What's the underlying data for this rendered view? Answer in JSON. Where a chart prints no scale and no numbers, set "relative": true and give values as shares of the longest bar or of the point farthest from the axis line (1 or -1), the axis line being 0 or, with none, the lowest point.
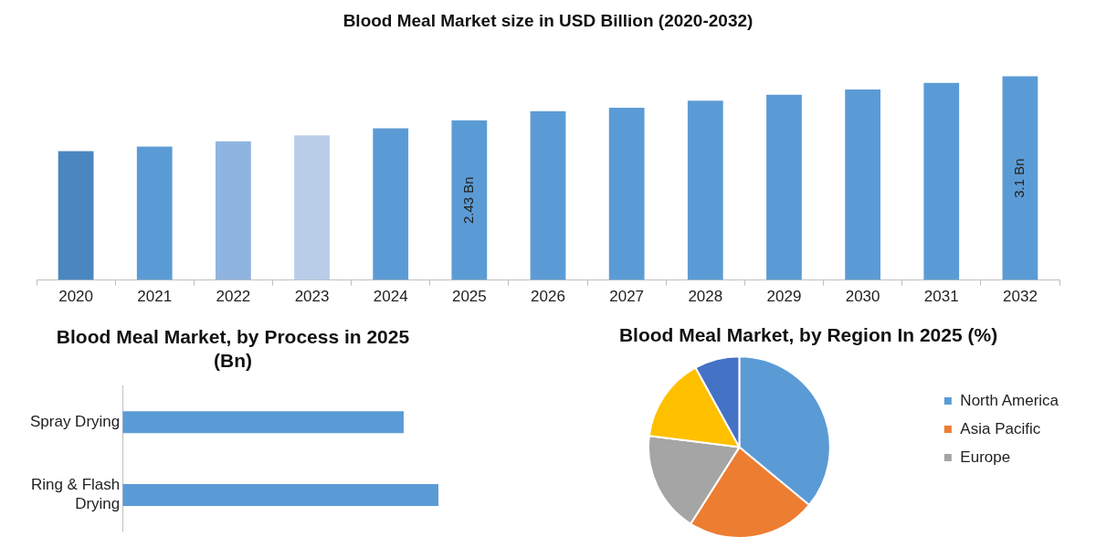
{
  "chart_data": [
    {
      "type": "bar",
      "title": "Blood Meal Market size in USD Billion (2020-2032)",
      "categories": [
        "2020",
        "2021",
        "2022",
        "2023",
        "2024",
        "2025",
        "2026",
        "2027",
        "2028",
        "2029",
        "2030",
        "2031",
        "2032"
      ],
      "values": [
        1.96,
        2.03,
        2.11,
        2.2,
        2.31,
        2.43,
        2.57,
        2.62,
        2.73,
        2.82,
        2.9,
        3.0,
        3.1
      ],
      "colors": [
        "#4a86c0",
        "#5b9bd5",
        "#8fb4e0",
        "#b9cde9",
        "#5b9bd5",
        "#5b9bd5",
        "#5b9bd5",
        "#5b9bd5",
        "#5b9bd5",
        "#5b9bd5",
        "#5b9bd5",
        "#5b9bd5",
        "#5b9bd5"
      ],
      "value_labels": [
        null,
        null,
        null,
        null,
        null,
        "2.43 Bn",
        null,
        null,
        null,
        null,
        null,
        null,
        "3.1 Bn"
      ],
      "tick_labels": "x",
      "grid": false,
      "legend": false
    },
    {
      "type": "bar",
      "orientation": "horizontal",
      "title": "Blood Meal Market, by Process in 2025 (Bn)",
      "categories": [
        "Spray Drying",
        "Ring & Flash Drying"
      ],
      "values": [
        0.89,
        1
      ],
      "color": "#5b9bd5",
      "relative": true,
      "grid": false,
      "legend": false
    },
    {
      "type": "pie",
      "title": "Blood Meal Market, by Region In 2025 (%)",
      "categories": [
        "North America",
        "Asia Pacific",
        "Europe",
        null,
        null
      ],
      "values": [
        36,
        23,
        18,
        15,
        8
      ],
      "colors": [
        "#5b9bd5",
        "#ed7d31",
        "#a5a5a5",
        "#ffc000",
        "#4472c4"
      ],
      "legend": "right"
    }
  ]
}
